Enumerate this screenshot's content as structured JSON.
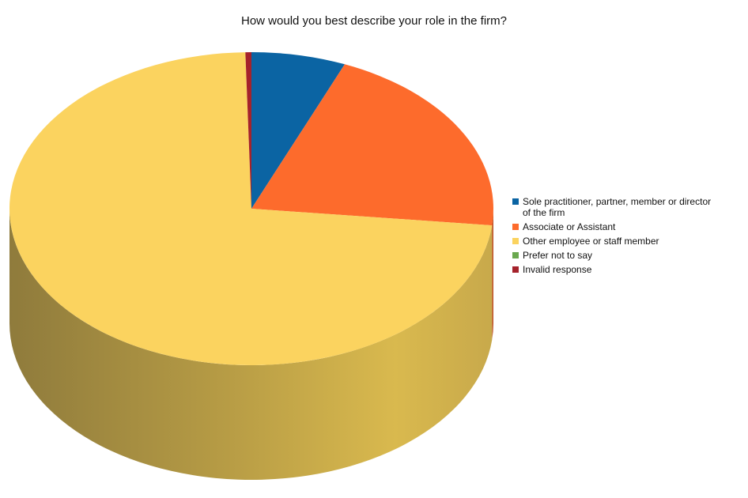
{
  "chart_data": {
    "type": "pie",
    "title": "How would you best describe your role in the firm?",
    "categories": [
      "Sole practitioner, partner, member or director of the firm",
      "Associate or Assistant",
      "Other employee or staff member",
      "Prefer not to say",
      "Invalid response"
    ],
    "values": [
      6.3,
      20.4,
      72.9,
      0,
      0.4
    ],
    "unit": "percent",
    "colors": [
      "#0b64a3",
      "#fd6b2c",
      "#fbd35f",
      "#6aa84f",
      "#a5222b"
    ],
    "style": "3d",
    "legend_position": "right"
  }
}
